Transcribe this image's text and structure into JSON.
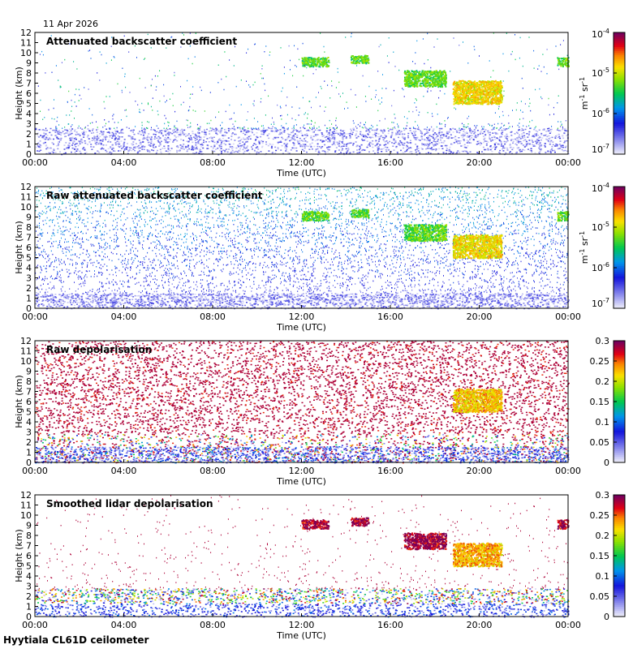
{
  "date": "11 Apr 2026",
  "footer": "Hyytiala CL61D ceilometer",
  "chart_data": [
    {
      "type": "heatmap",
      "title": "Attenuated backscatter coefficient",
      "xlabel": "Time (UTC)",
      "ylabel": "Height (km)",
      "x_ticks": [
        "00:00",
        "04:00",
        "08:00",
        "12:00",
        "16:00",
        "20:00",
        "00:00"
      ],
      "y_ticks": [
        "0",
        "1",
        "2",
        "3",
        "4",
        "5",
        "6",
        "7",
        "8",
        "9",
        "10",
        "11",
        "12"
      ],
      "ylim": [
        0,
        12
      ],
      "colorbar": {
        "scale": "log",
        "range": [
          1e-07,
          0.0001
        ],
        "tick_bases": [
          "10",
          "10",
          "10",
          "10"
        ],
        "tick_exps": [
          "-7",
          "-6",
          "-5",
          "-4"
        ],
        "unit_parts": [
          "m",
          "-1",
          " sr",
          "-1"
        ]
      },
      "noise_level": "low",
      "near_surface_layer_top_km": 2.6,
      "cloud_features": [
        {
          "hours": [
            12.0,
            13.2
          ],
          "height_km": [
            8.7,
            9.6
          ],
          "level": 0.55
        },
        {
          "hours": [
            14.2,
            15.0
          ],
          "height_km": [
            9.0,
            9.8
          ],
          "level": 0.55
        },
        {
          "hours": [
            16.6,
            18.5
          ],
          "height_km": [
            6.7,
            8.3
          ],
          "level": 0.55
        },
        {
          "hours": [
            18.8,
            21.0
          ],
          "height_km": [
            5.0,
            7.3
          ],
          "level": 0.7
        },
        {
          "hours": [
            23.5,
            24.0
          ],
          "height_km": [
            8.7,
            9.6
          ],
          "level": 0.55
        }
      ]
    },
    {
      "type": "heatmap",
      "title": "Raw attenuated backscatter coefficient",
      "xlabel": "Time (UTC)",
      "ylabel": "Height (km)",
      "x_ticks": [
        "00:00",
        "04:00",
        "08:00",
        "12:00",
        "16:00",
        "20:00",
        "00:00"
      ],
      "y_ticks": [
        "0",
        "1",
        "2",
        "3",
        "4",
        "5",
        "6",
        "7",
        "8",
        "9",
        "10",
        "11",
        "12"
      ],
      "ylim": [
        0,
        12
      ],
      "colorbar": {
        "scale": "log",
        "range": [
          1e-07,
          0.0001
        ],
        "tick_bases": [
          "10",
          "10",
          "10",
          "10"
        ],
        "tick_exps": [
          "-7",
          "-6",
          "-5",
          "-4"
        ],
        "unit_parts": [
          "m",
          "-1",
          " sr",
          "-1"
        ]
      },
      "noise_level": "high",
      "near_surface_layer_top_km": 1.5,
      "cloud_features": [
        {
          "hours": [
            12.0,
            13.2
          ],
          "height_km": [
            8.7,
            9.6
          ],
          "level": 0.55
        },
        {
          "hours": [
            14.2,
            15.0
          ],
          "height_km": [
            9.0,
            9.8
          ],
          "level": 0.55
        },
        {
          "hours": [
            16.6,
            18.5
          ],
          "height_km": [
            6.7,
            8.3
          ],
          "level": 0.55
        },
        {
          "hours": [
            18.8,
            21.0
          ],
          "height_km": [
            5.0,
            7.3
          ],
          "level": 0.7
        },
        {
          "hours": [
            23.5,
            24.0
          ],
          "height_km": [
            8.7,
            9.6
          ],
          "level": 0.55
        }
      ]
    },
    {
      "type": "heatmap",
      "title": "Raw depolarisation",
      "xlabel": "Time (UTC)",
      "ylabel": "Height (km)",
      "x_ticks": [
        "00:00",
        "04:00",
        "08:00",
        "12:00",
        "16:00",
        "20:00",
        "00:00"
      ],
      "y_ticks": [
        "0",
        "1",
        "2",
        "3",
        "4",
        "5",
        "6",
        "7",
        "8",
        "9",
        "10",
        "11",
        "12"
      ],
      "ylim": [
        0,
        12
      ],
      "colorbar": {
        "scale": "linear",
        "range": [
          0,
          0.3
        ],
        "ticks": [
          "0",
          "0.05",
          "0.1",
          "0.15",
          "0.2",
          "0.25",
          "0.3"
        ]
      },
      "noise_level": "full",
      "near_surface_layer_top_km": 1.5,
      "cloud_features": [
        {
          "hours": [
            18.8,
            21.0
          ],
          "height_km": [
            5.0,
            7.3
          ],
          "level": 0.75
        }
      ]
    },
    {
      "type": "heatmap",
      "title": "Smoothed lidar depolarisation",
      "xlabel": "Time (UTC)",
      "ylabel": "Height (km)",
      "x_ticks": [
        "00:00",
        "04:00",
        "08:00",
        "12:00",
        "16:00",
        "20:00",
        "00:00"
      ],
      "y_ticks": [
        "0",
        "1",
        "2",
        "3",
        "4",
        "5",
        "6",
        "7",
        "8",
        "9",
        "10",
        "11",
        "12"
      ],
      "ylim": [
        0,
        12
      ],
      "colorbar": {
        "scale": "linear",
        "range": [
          0,
          0.3
        ],
        "ticks": [
          "0",
          "0.05",
          "0.1",
          "0.15",
          "0.2",
          "0.25",
          "0.3"
        ]
      },
      "noise_level": "sparse",
      "near_surface_layer_top_km": 2.8,
      "cloud_features": [
        {
          "hours": [
            12.0,
            13.2
          ],
          "height_km": [
            8.7,
            9.6
          ],
          "level": 0.95
        },
        {
          "hours": [
            14.2,
            15.0
          ],
          "height_km": [
            9.0,
            9.8
          ],
          "level": 0.95
        },
        {
          "hours": [
            16.6,
            18.5
          ],
          "height_km": [
            6.7,
            8.3
          ],
          "level": 0.95
        },
        {
          "hours": [
            18.8,
            21.0
          ],
          "height_km": [
            5.0,
            7.3
          ],
          "level": 0.75
        },
        {
          "hours": [
            23.5,
            24.0
          ],
          "height_km": [
            8.7,
            9.6
          ],
          "level": 0.95
        }
      ]
    }
  ]
}
